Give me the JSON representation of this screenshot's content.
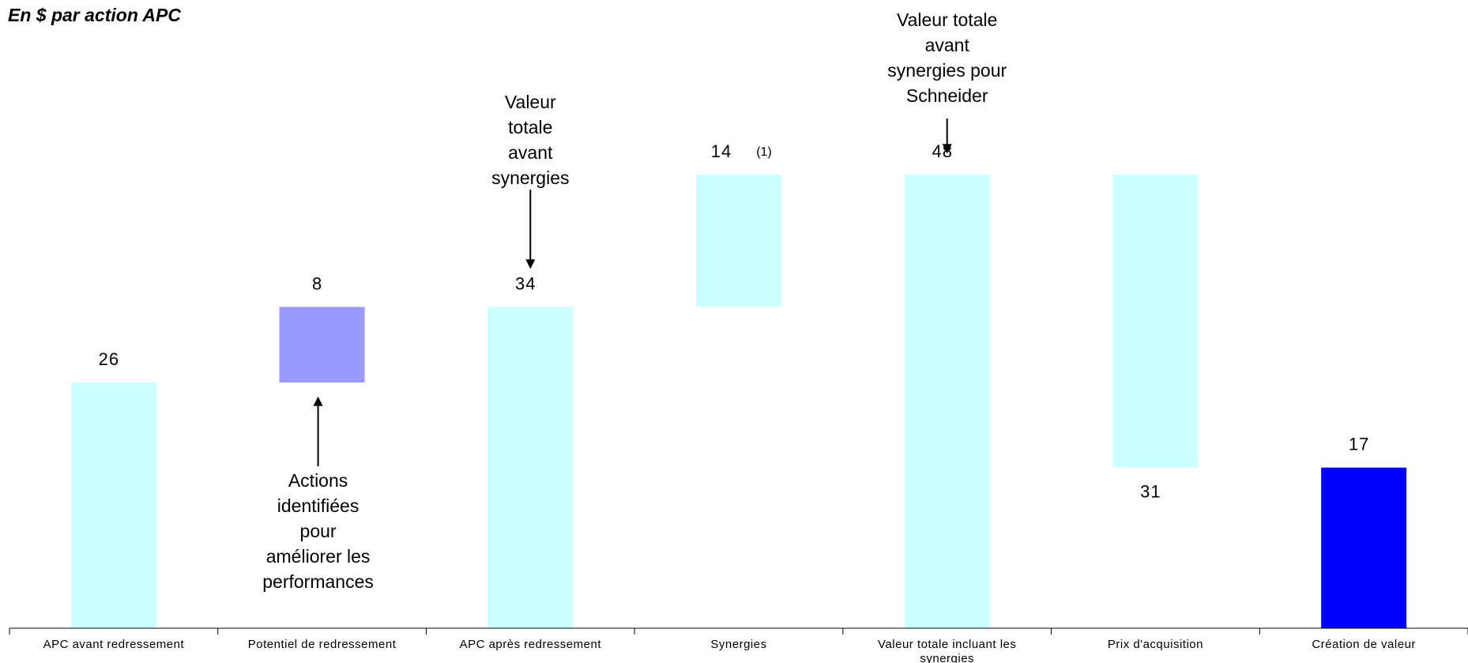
{
  "chart_data": {
    "type": "bar",
    "subtitle": "En $ par action APC",
    "categories": [
      "APC avant redressement",
      "Potentiel de redressement",
      "APC après redressement",
      "Synergies",
      "Valeur totale incluant les synergies",
      "Prix d'acquisition",
      "Création de valeur"
    ],
    "bars": [
      {
        "label": "26",
        "bottom": 0,
        "top": 26,
        "color": "#ccffff"
      },
      {
        "label": "8",
        "bottom": 26,
        "top": 34,
        "color": "#9999ff"
      },
      {
        "label": "34",
        "bottom": 0,
        "top": 34,
        "color": "#ccffff"
      },
      {
        "label": "14",
        "note": "(1)",
        "bottom": 34,
        "top": 48,
        "color": "#ccffff"
      },
      {
        "label": "48",
        "bottom": 0,
        "top": 48,
        "color": "#ccffff"
      },
      {
        "label": "31",
        "bottom": 17,
        "top": 48,
        "color": "#ccffff"
      },
      {
        "label": "17",
        "bottom": 0,
        "top": 17,
        "color": "#0000ff"
      }
    ],
    "annotations": [
      {
        "category": 1,
        "direction": "up",
        "lines": [
          "Actions",
          "identifiées",
          "pour",
          "améliorer les",
          "performances"
        ]
      },
      {
        "category": 2,
        "direction": "down",
        "lines": [
          "Valeur",
          "totale",
          "avant",
          "synergies"
        ]
      },
      {
        "category": 4,
        "direction": "down",
        "lines": [
          "Valeur totale",
          "avant",
          "synergies pour",
          "Schneider"
        ]
      }
    ],
    "ylim": [
      0,
      48
    ]
  }
}
